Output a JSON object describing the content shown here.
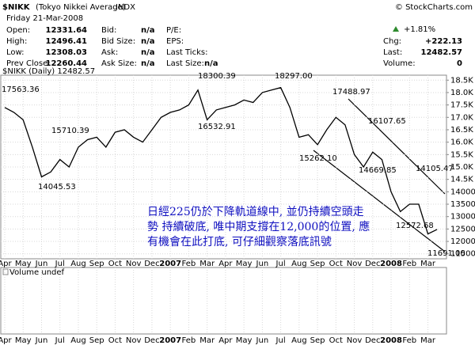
{
  "header": {
    "symbol": "$NIKK",
    "name": "(Tokyo Nikkei Average)",
    "exchange": "INDX",
    "copyright": "© StockCharts.com",
    "date": "Friday  21-Mar-2008",
    "rows": [
      [
        "Open:",
        12331.64,
        "Bid:",
        "n/a",
        "P/E:",
        ""
      ],
      [
        "High:",
        12496.41,
        "Bid Size:",
        "n/a",
        "EPS:",
        ""
      ],
      [
        "Low:",
        12308.03,
        "Ask:",
        "n/a",
        "Last Ticks:",
        ""
      ],
      [
        "Prev Close:",
        12260.44,
        "Ask Size:",
        "n/a",
        "Last Size:",
        "n/a"
      ]
    ],
    "change_pct": "+1.81%",
    "chg_label": "Chg:",
    "chg": "+222.13",
    "last_label": "Last:",
    "last": 12482.57,
    "volume_label": "Volume:",
    "volume": 0
  },
  "chart_data": {
    "type": "line",
    "label": "$NIKK (Daily) 12482.57",
    "volume_label": "Volume undef",
    "color": "#000000",
    "categories": [
      "Apr",
      null,
      "May",
      null,
      "Jun",
      null,
      "Jul",
      null,
      "Aug",
      null,
      "Sep",
      null,
      "Oct",
      null,
      "Nov",
      null,
      "Dec",
      null,
      "2007",
      null,
      "Feb",
      null,
      "Mar",
      null,
      "Apr",
      null,
      "May",
      null,
      "Jun",
      null,
      "Jul",
      null,
      "Aug",
      null,
      "Sep",
      null,
      "Oct",
      null,
      "Nov",
      null,
      "Dec",
      null,
      "2008",
      null,
      "Feb",
      null,
      "Mar",
      null
    ],
    "values": [
      17400,
      17200,
      16900,
      15800,
      14600,
      14800,
      15300,
      15000,
      15800,
      16100,
      16200,
      15800,
      16400,
      16500,
      16200,
      16000,
      16500,
      17000,
      17200,
      17300,
      17500,
      18100,
      16900,
      17300,
      17400,
      17500,
      17700,
      17600,
      18000,
      18100,
      18200,
      17400,
      16200,
      16300,
      15900,
      16500,
      17000,
      16700,
      15500,
      15000,
      15600,
      15300,
      14000,
      13200,
      13500,
      13500,
      12300,
      12483
    ],
    "ylim": [
      11300,
      18700
    ],
    "yticks": [
      {
        "value": 18500,
        "label": "18.5K"
      },
      {
        "value": 18000,
        "label": "18.0K"
      },
      {
        "value": 17500,
        "label": "17.5K"
      },
      {
        "value": 17000,
        "label": "17.0K"
      },
      {
        "value": 16500,
        "label": "16.5K"
      },
      {
        "value": 16000,
        "label": "16.0K"
      },
      {
        "value": 15500,
        "label": "15.5K"
      },
      {
        "value": 15000,
        "label": "15.0K"
      },
      {
        "value": 14500,
        "label": "14.5K"
      },
      14000,
      13500,
      13000,
      12500,
      12000,
      11500
    ],
    "grid": true,
    "annotations": [
      "17563.36",
      "15710.39",
      "14045.53",
      "18300.39",
      "16532.91",
      "18297.00",
      "17488.97",
      "15262.10",
      "16107.65",
      "14669.85",
      "12572.68",
      "14105.47",
      "11691.00"
    ],
    "comment": [
      "日經225仍於下降軌道線中, 並仍持續空頭走",
      "勢 持續破底, 唯中期支撐在12,000的位置, 應",
      "有機會在此打底, 可仔細觀察落底訊號"
    ]
  }
}
